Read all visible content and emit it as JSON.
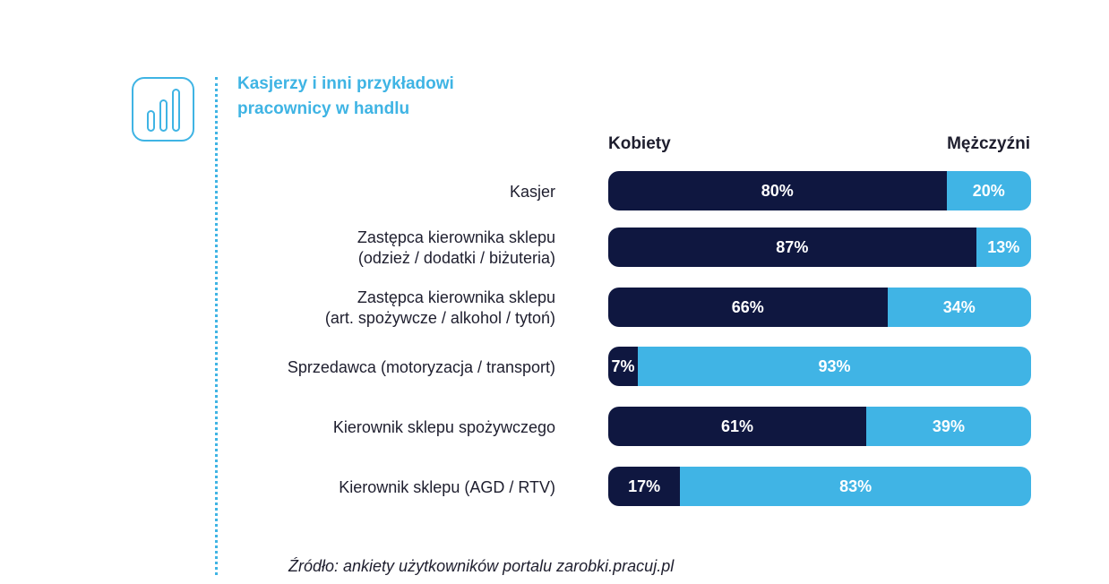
{
  "header": {
    "title_line1": "Kasjerzy i inni przykładowi",
    "title_line2": "pracownicy w handlu",
    "icon": "bar-chart-icon"
  },
  "colors": {
    "women": "#0f1740",
    "men": "#40b4e5",
    "accent": "#3fb4e4"
  },
  "chart_data": {
    "type": "bar",
    "orientation": "horizontal",
    "stacked": true,
    "normalized_to": 100,
    "categories": [
      [
        "Kasjer"
      ],
      [
        "Zastępca kierownika sklepu",
        "(odzież / dodatki / biżuteria)"
      ],
      [
        "Zastępca kierownika sklepu",
        "(art. spożywcze / alkohol / tytoń)"
      ],
      [
        "Sprzedawca (motoryzacja / transport)"
      ],
      [
        "Kierownik sklepu spożywczego"
      ],
      [
        "Kierownik sklepu (AGD / RTV)"
      ]
    ],
    "series": [
      {
        "name": "Kobiety",
        "values": [
          80,
          87,
          66,
          7,
          61,
          17
        ]
      },
      {
        "name": "Mężczyźni",
        "values": [
          20,
          13,
          34,
          93,
          39,
          83
        ]
      }
    ],
    "value_suffix": "%",
    "legend_position": "top",
    "source": "Źródło: ankiety użytkowników portalu zarobki.pracuj.pl"
  }
}
